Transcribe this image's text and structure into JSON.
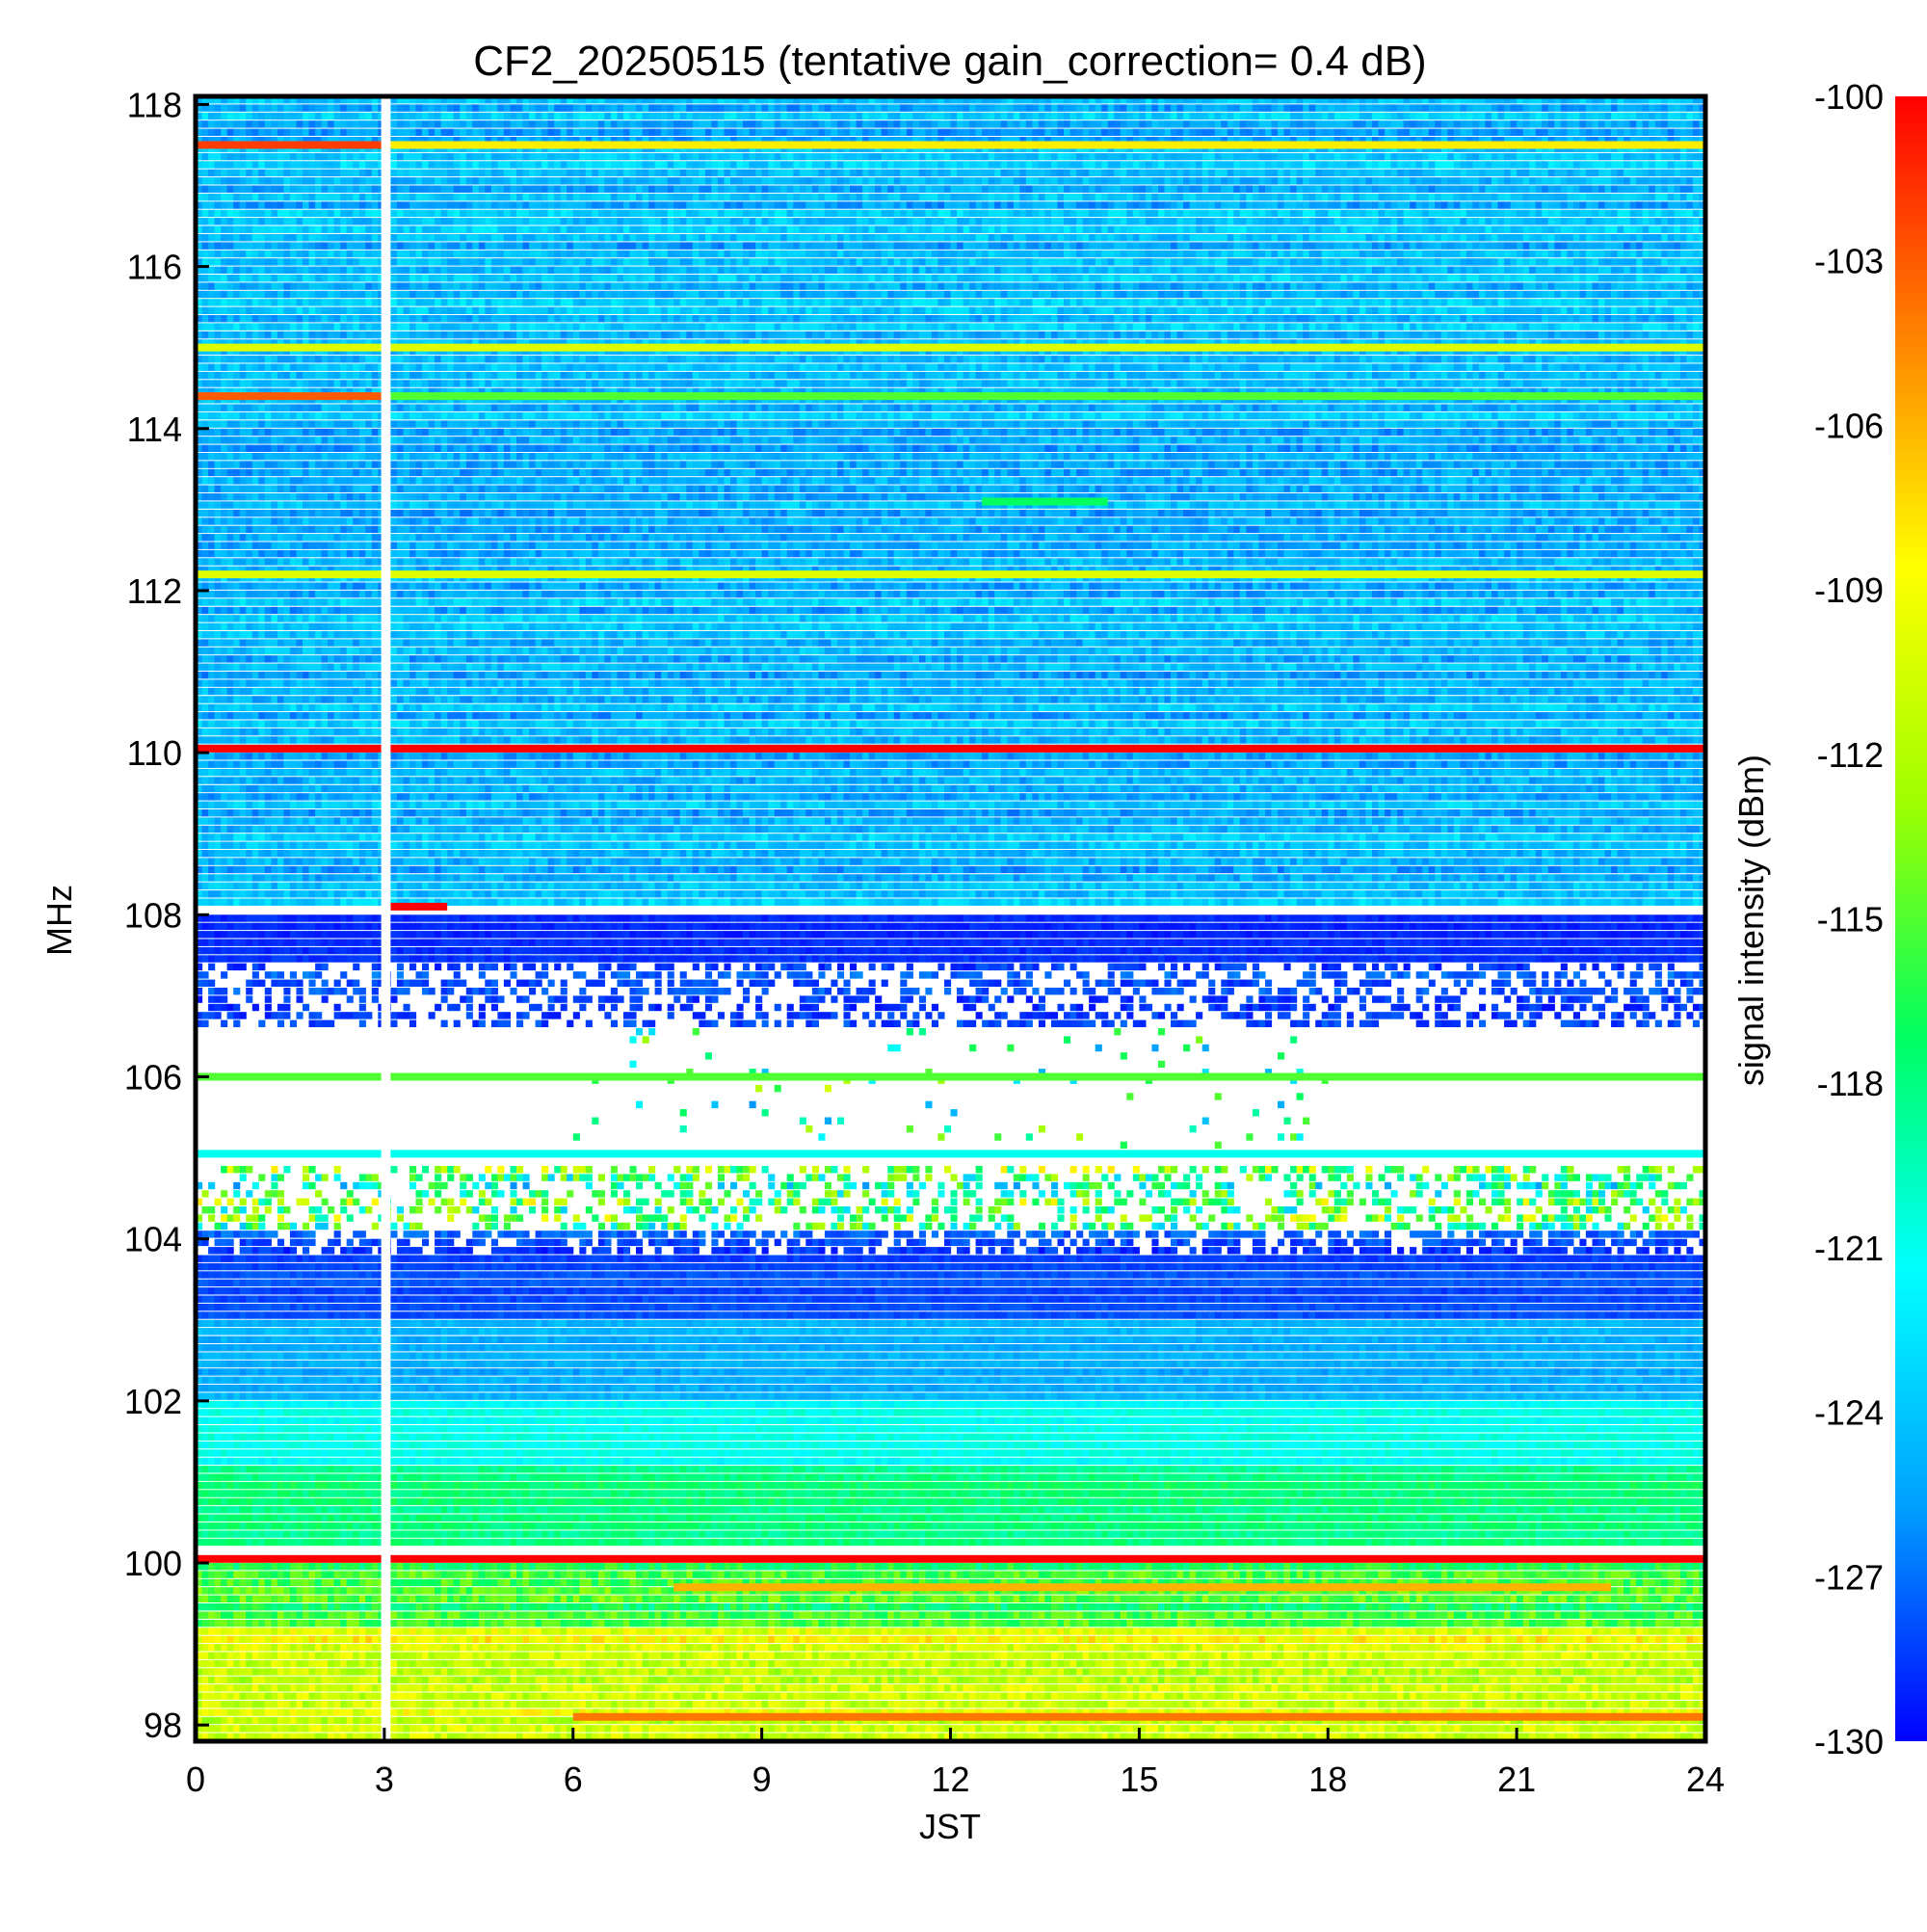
{
  "chart_data": {
    "type": "heatmap",
    "title": "CF2_20250515 (tentative gain_correction=  0.4 dB)",
    "xlabel": "JST",
    "ylabel": "MHz",
    "xlim": [
      0,
      24
    ],
    "ylim": [
      97.8,
      118.1
    ],
    "x_ticks": [
      "0",
      "3",
      "6",
      "9",
      "12",
      "15",
      "18",
      "21",
      "24"
    ],
    "y_ticks": [
      "98",
      "100",
      "102",
      "104",
      "106",
      "108",
      "110",
      "112",
      "114",
      "116",
      "118"
    ],
    "colorbar": {
      "label": "signal intensity (dBm)",
      "range": [
        -130,
        -100
      ],
      "ticks": [
        "-100",
        "-103",
        "-106",
        "-109",
        "-112",
        "-115",
        "-118",
        "-121",
        "-124",
        "-127",
        "-130"
      ],
      "colormap": [
        "#0000ff",
        "#00a0ff",
        "#00ffff",
        "#00ff60",
        "#a0ff00",
        "#ffff00",
        "#ff8000",
        "#ff0000"
      ]
    },
    "data_gap": {
      "x_start": 2.95,
      "x_end": 3.1
    },
    "bands": [
      {
        "f_from": 108.1,
        "f_to": 118.1,
        "level_dbm": -124.5,
        "noise_db": 2.2,
        "t_from": 0,
        "t_to": 24
      },
      {
        "f_from": 107.4,
        "f_to": 108.0,
        "level_dbm": -129,
        "noise_db": 0.8,
        "t_from": 0,
        "t_to": 24
      },
      {
        "f_from": 106.6,
        "f_to": 107.4,
        "level_dbm": -128,
        "noise_db": 1.5,
        "density": 0.5,
        "t_from": 0,
        "t_to": 24
      },
      {
        "f_from": 105.1,
        "f_to": 106.6,
        "level_dbm": -118,
        "noise_db": 8,
        "density": 0.04,
        "t_from": 6,
        "t_to": 18
      },
      {
        "f_from": 104.1,
        "f_to": 104.9,
        "level_dbm": -118,
        "noise_db": 9,
        "density": 0.45,
        "t_from": 0,
        "t_to": 24
      },
      {
        "f_from": 103.8,
        "f_to": 104.1,
        "level_dbm": -128,
        "noise_db": 1.5,
        "density": 0.7,
        "t_from": 0,
        "t_to": 24
      },
      {
        "f_from": 103.0,
        "f_to": 103.8,
        "level_dbm": -128,
        "noise_db": 0.8,
        "t_from": 0,
        "t_to": 24
      },
      {
        "f_from": 102.0,
        "f_to": 103.0,
        "level_dbm": -125,
        "noise_db": 1.2,
        "t_from": 0,
        "t_to": 24
      },
      {
        "f_from": 101.2,
        "f_to": 102.0,
        "level_dbm": -121,
        "noise_db": 1.2,
        "t_from": 0,
        "t_to": 24
      },
      {
        "f_from": 100.2,
        "f_to": 101.2,
        "level_dbm": -118,
        "noise_db": 1.5,
        "t_from": 0,
        "t_to": 24
      },
      {
        "f_from": 99.2,
        "f_to": 100.0,
        "level_dbm": -116,
        "noise_db": 3,
        "t_from": 0,
        "t_to": 24
      },
      {
        "f_from": 97.8,
        "f_to": 99.2,
        "level_dbm": -110,
        "noise_db": 3,
        "t_from": 0,
        "t_to": 24
      }
    ],
    "lines": [
      {
        "f": 117.5,
        "level_dbm": -108,
        "t_from": 0,
        "t_to": 24
      },
      {
        "f": 117.5,
        "level_dbm": -102,
        "t_from": 0,
        "t_to": 3
      },
      {
        "f": 115.0,
        "level_dbm": -110,
        "t_from": 0,
        "t_to": 24
      },
      {
        "f": 114.4,
        "level_dbm": -103,
        "t_from": 0,
        "t_to": 3
      },
      {
        "f": 114.4,
        "level_dbm": -115,
        "t_from": 3,
        "t_to": 24
      },
      {
        "f": 113.1,
        "level_dbm": -117,
        "t_from": 12.5,
        "t_to": 14.5
      },
      {
        "f": 112.2,
        "level_dbm": -110,
        "t_from": 0,
        "t_to": 24
      },
      {
        "f": 110.05,
        "level_dbm": -100,
        "t_from": 0,
        "t_to": 24
      },
      {
        "f": 108.1,
        "level_dbm": -100,
        "t_from": 3.1,
        "t_to": 4
      },
      {
        "f": 106.0,
        "level_dbm": -115,
        "t_from": 0,
        "t_to": 24
      },
      {
        "f": 105.05,
        "level_dbm": -121,
        "t_from": 0,
        "t_to": 24
      },
      {
        "f": 100.05,
        "level_dbm": -100,
        "t_from": 0,
        "t_to": 24
      },
      {
        "f": 99.7,
        "level_dbm": -106,
        "t_from": 7.6,
        "t_to": 22.5
      },
      {
        "f": 98.1,
        "level_dbm": -104,
        "t_from": 6,
        "t_to": 24
      }
    ]
  }
}
